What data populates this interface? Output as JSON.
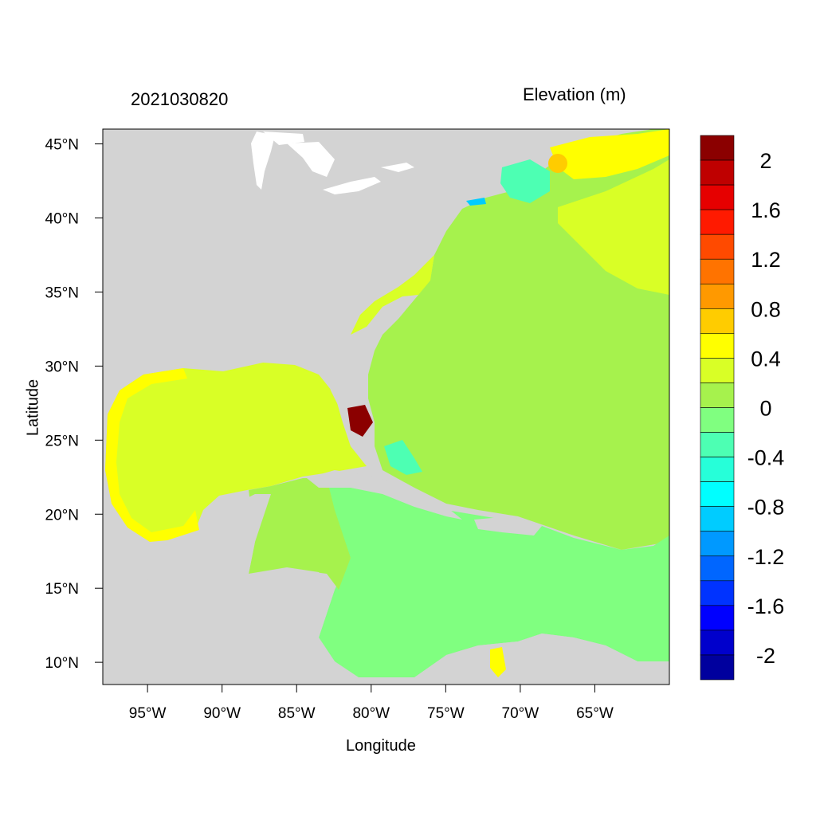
{
  "map": {
    "timestamp": "2021030820",
    "variable_title": "Elevation (m)",
    "xlabel": "Longitude",
    "ylabel": "Latitude",
    "lon_ticks": [
      "95°W",
      "90°W",
      "85°W",
      "80°W",
      "75°W",
      "70°W",
      "65°W"
    ],
    "lat_ticks": [
      "45°N",
      "40°N",
      "35°N",
      "30°N",
      "25°N",
      "20°N",
      "15°N",
      "10°N"
    ],
    "lon_tick_values": [
      -95,
      -90,
      -85,
      -80,
      -75,
      -70,
      -65
    ],
    "lat_tick_values": [
      45,
      40,
      35,
      30,
      25,
      20,
      15,
      10
    ],
    "lon_range": [
      -98,
      -60
    ],
    "lat_range": [
      8.5,
      46
    ],
    "land_color": "#d3d3d3"
  },
  "colorbar": {
    "labels": [
      "2",
      "1.6",
      "1.2",
      "0.8",
      "0.4",
      "0",
      "-0.4",
      "-0.8",
      "-1.2",
      "-1.6",
      "-2"
    ],
    "colors": [
      "#8b0000",
      "#bf0000",
      "#e60000",
      "#ff1a00",
      "#ff4a00",
      "#ff7300",
      "#ff9900",
      "#ffcc00",
      "#ffff00",
      "#d9ff26",
      "#a6f24d",
      "#80ff80",
      "#4dffb3",
      "#26ffd9",
      "#00ffff",
      "#00ccff",
      "#0099ff",
      "#0066ff",
      "#0033ff",
      "#0000ff",
      "#0000cc",
      "#00009e"
    ]
  }
}
